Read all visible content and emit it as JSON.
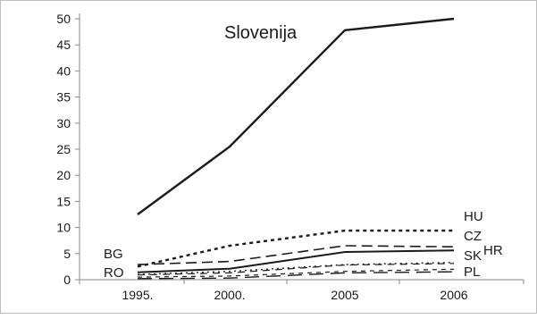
{
  "chart_data": {
    "type": "line",
    "categories": [
      "1995.",
      "2000.",
      "2005",
      "2006"
    ],
    "ylim": [
      0,
      50
    ],
    "yticks": [
      0,
      5,
      10,
      15,
      20,
      25,
      30,
      35,
      40,
      45,
      50
    ],
    "grid": false,
    "legend": "none",
    "annotation": "Slovenija",
    "series": [
      {
        "key": "si",
        "label": "",
        "values": [
          12.5,
          25.5,
          47.8,
          50.0
        ],
        "style": "solid-thick"
      },
      {
        "key": "hu",
        "label": "HU",
        "values": [
          2.5,
          6.5,
          9.4,
          9.4
        ],
        "style": "dotted-thick"
      },
      {
        "key": "cz",
        "label": "CZ",
        "values": [
          2.9,
          3.5,
          6.5,
          6.3
        ],
        "style": "dashed"
      },
      {
        "key": "hr",
        "label": "HR",
        "values": [
          1.4,
          2.1,
          5.3,
          5.6
        ],
        "style": "solid"
      },
      {
        "key": "bg",
        "label": "BG",
        "values": [
          1.0,
          1.6,
          2.9,
          3.3
        ],
        "style": "dotted"
      },
      {
        "key": "sk",
        "label": "SK",
        "values": [
          0.9,
          1.3,
          2.8,
          3.1
        ],
        "style": "dashed-light"
      },
      {
        "key": "ro",
        "label": "RO",
        "values": [
          0.5,
          0.7,
          1.6,
          2.0
        ],
        "style": "dashed-thin"
      },
      {
        "key": "pl",
        "label": "PL",
        "values": [
          0.2,
          0.3,
          1.3,
          1.5
        ],
        "style": "dashed-long"
      }
    ],
    "series_label_positions": {
      "left": [
        "bg",
        "ro"
      ],
      "right": [
        "hu",
        "cz",
        "hr",
        "sk",
        "pl"
      ]
    },
    "colors": {
      "line": "#1a1a1a",
      "axis": "#8a8a8a",
      "border": "#bdbdbd"
    }
  }
}
